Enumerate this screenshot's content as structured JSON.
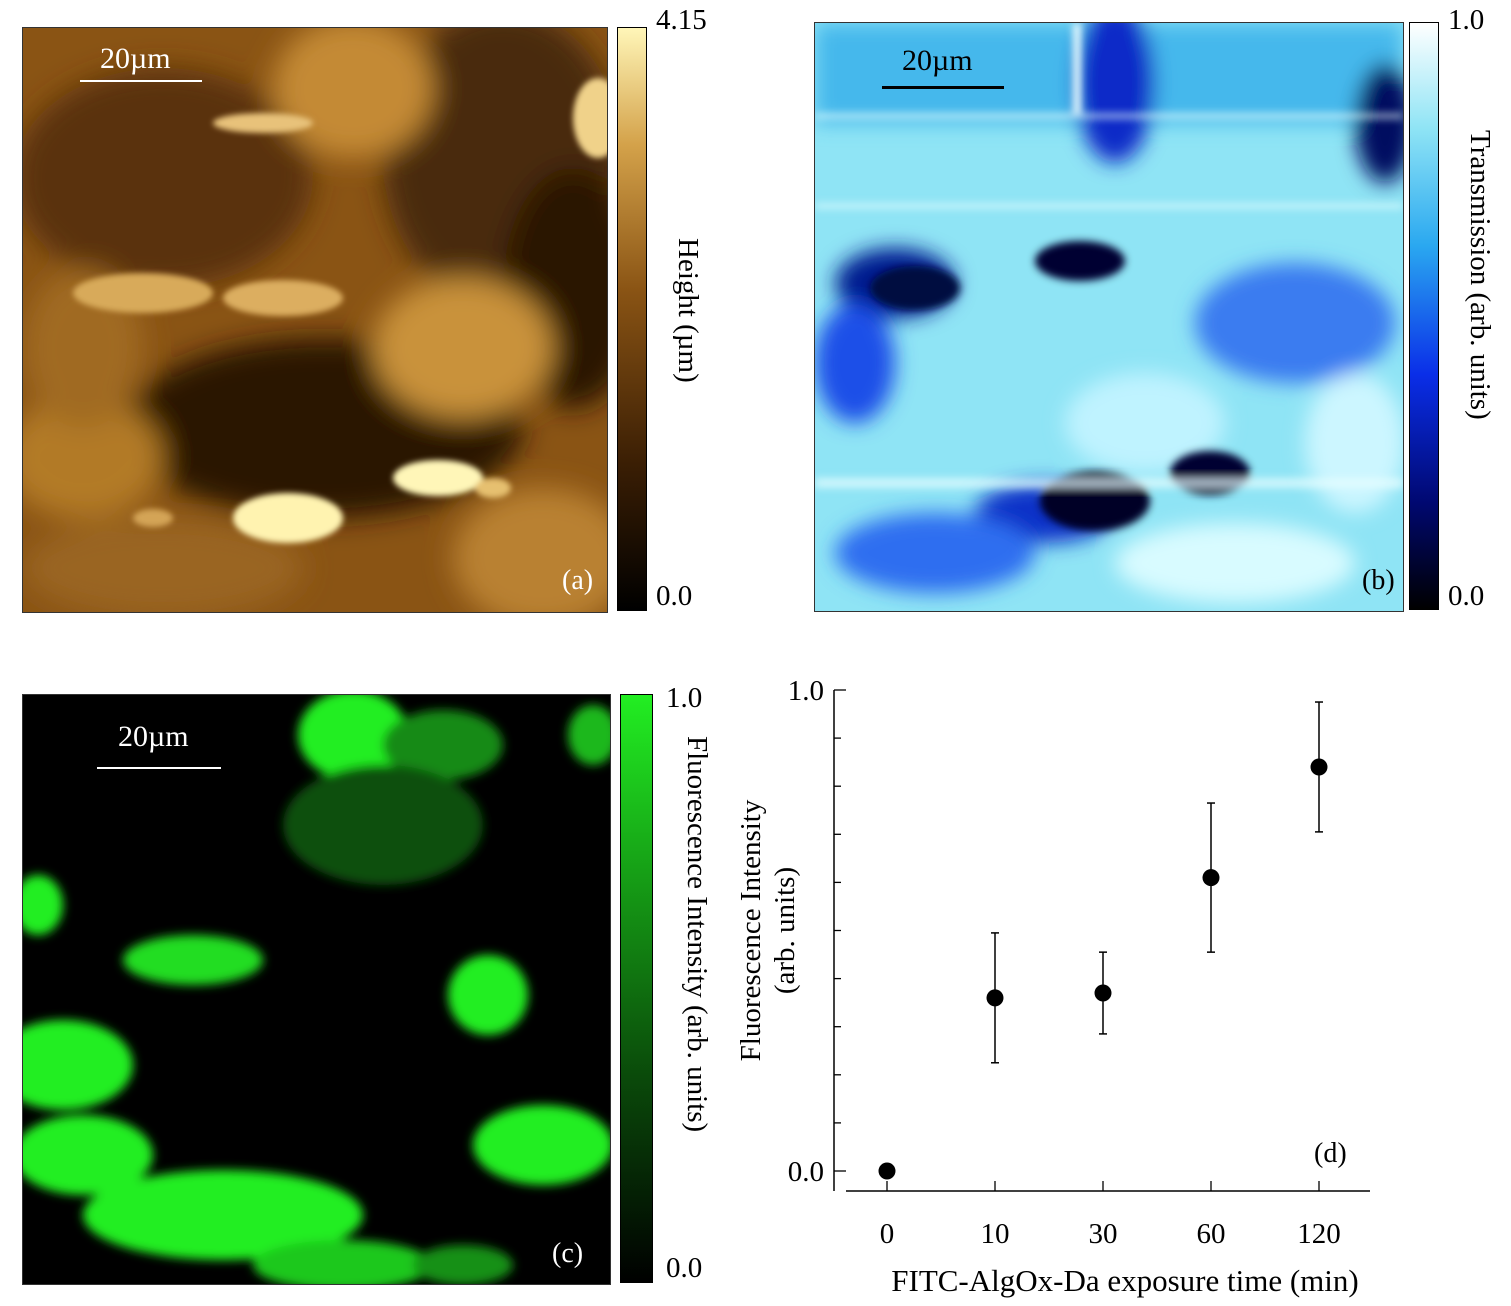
{
  "figure": {
    "panel_a": {
      "tag": "(a)",
      "scalebar": "20µm",
      "colorbar": {
        "max": "4.15",
        "min": "0.0",
        "label": "Height (µm)"
      },
      "colors": {
        "dark": "#1b0d02",
        "mid": "#8a5414",
        "light": "#fff6b8"
      }
    },
    "panel_b": {
      "tag": "(b)",
      "scalebar": "20µm",
      "colorbar": {
        "max": "1.0",
        "min": "0.0",
        "label": "Transmission (arb. units)"
      },
      "colors": {
        "dark": "#000010",
        "mid": "#1a3fe0",
        "light": "#e8fbff"
      }
    },
    "panel_c": {
      "tag": "(c)",
      "scalebar": "20µm",
      "colorbar": {
        "max": "1.0",
        "min": "0.0",
        "label": "Fluorescence Intensity (arb. units)"
      },
      "colors": {
        "dark": "#000000",
        "light": "#22ee22"
      }
    },
    "panel_d": {
      "tag": "(d)"
    }
  },
  "chart_data": {
    "type": "scatter",
    "categories": [
      "0",
      "10",
      "30",
      "60",
      "120"
    ],
    "values": [
      0.0,
      0.36,
      0.37,
      0.61,
      0.84
    ],
    "error_bars": [
      0.0,
      0.135,
      0.085,
      0.155,
      0.135
    ],
    "xlabel": "FITC-AlgOx-Da exposure time (min)",
    "ylabel": "Fluorescence Intensity\n(arb. units)",
    "ylim": [
      0.0,
      1.0
    ],
    "yticks": [
      "0.0",
      "1.0"
    ],
    "grid": false,
    "marker_color": "#000000"
  }
}
